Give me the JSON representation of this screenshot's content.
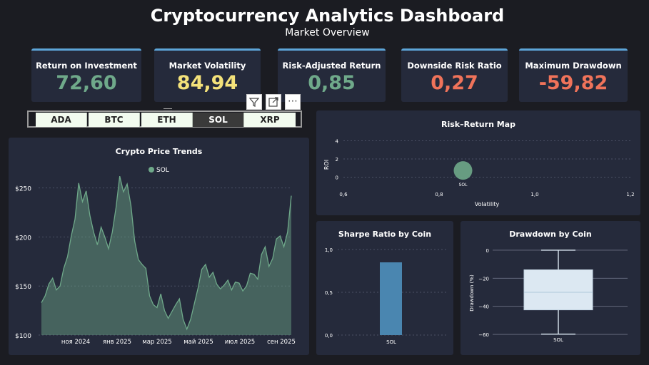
{
  "header": {
    "title": "Cryptocurrency Analytics Dashboard",
    "subtitle": "Market Overview"
  },
  "kpis": [
    {
      "label": "Return on Investment",
      "value": "72,60",
      "color": "#6fa98a"
    },
    {
      "label": "Market Volatility",
      "value": "84,94",
      "color": "#f4e27a"
    },
    {
      "label": "Risk-Adjusted Return",
      "value": "0,85",
      "color": "#6fa98a"
    },
    {
      "label": "Downside Risk Ratio",
      "value": "0,27",
      "color": "#f0735a"
    },
    {
      "label": "Maximum Drawdown",
      "value": "-59,82",
      "color": "#f0735a"
    }
  ],
  "toolbar": {
    "icons": [
      "filter-icon",
      "focus-mode-icon",
      "more-options-icon"
    ],
    "more_label": "⋯"
  },
  "slicer": {
    "options": [
      "ADA",
      "BTC",
      "ETH",
      "SOL",
      "XRP"
    ],
    "selected": "SOL"
  },
  "price_chart": {
    "title": "Crypto Price Trends",
    "legend": "SOL",
    "color": "#6fa98a",
    "chart_data": {
      "type": "area",
      "series": [
        {
          "name": "SOL",
          "x_start": "2024-09",
          "x_end": "2025-09",
          "values": [
            133,
            140,
            152,
            158,
            146,
            150,
            168,
            180,
            201,
            218,
            255,
            236,
            247,
            222,
            205,
            192,
            210,
            200,
            188,
            205,
            230,
            262,
            246,
            254,
            232,
            196,
            177,
            172,
            168,
            140,
            131,
            128,
            142,
            125,
            117,
            124,
            131,
            137,
            116,
            106,
            116,
            132,
            148,
            167,
            172,
            159,
            164,
            152,
            147,
            151,
            156,
            146,
            154,
            153,
            145,
            150,
            163,
            162,
            157,
            182,
            190,
            170,
            178,
            198,
            201,
            190,
            205,
            242
          ]
        }
      ],
      "x_ticks": [
        "ноя 2024",
        "янв 2025",
        "мар 2025",
        "май 2025",
        "июл 2025",
        "сен 2025"
      ],
      "y_ticks": [
        "$100",
        "$150",
        "$200",
        "$250"
      ],
      "ylim": [
        100,
        265
      ]
    }
  },
  "risk_map": {
    "title": "Risk–Return Map",
    "xlabel": "Volatility",
    "ylabel": "ROI",
    "x_ticks": [
      "0,6",
      "0,8",
      "1,0",
      "1,2"
    ],
    "y_ticks": [
      "4",
      "2",
      "0"
    ],
    "chart_data": {
      "type": "scatter",
      "points": [
        {
          "label": "SOL",
          "x": 0.85,
          "y": 0.73
        }
      ],
      "xlim": [
        0.6,
        1.2
      ],
      "ylim": [
        -0.2,
        4.2
      ]
    },
    "color": "#6fa98a"
  },
  "sharpe": {
    "title": "Sharpe Ratio by Coin",
    "y_ticks": [
      "1,0",
      "0,5",
      "0,0"
    ],
    "chart_data": {
      "type": "bar",
      "categories": [
        "SOL"
      ],
      "values": [
        0.85
      ],
      "ylim": [
        0,
        1.0
      ]
    },
    "color": "#4a86b0"
  },
  "drawdown": {
    "title": "Drawdown by Coin",
    "ylabel": "Drawdown (%)",
    "y_ticks": [
      "0",
      "−20",
      "−40",
      "−60"
    ],
    "chart_data": {
      "type": "box",
      "categories": [
        "SOL"
      ],
      "min": -59.8,
      "q1": -42.5,
      "median": -30.0,
      "q3": -14.0,
      "max": 0.0,
      "ylim": [
        -62,
        2
      ]
    },
    "color": "#dce8f2"
  }
}
